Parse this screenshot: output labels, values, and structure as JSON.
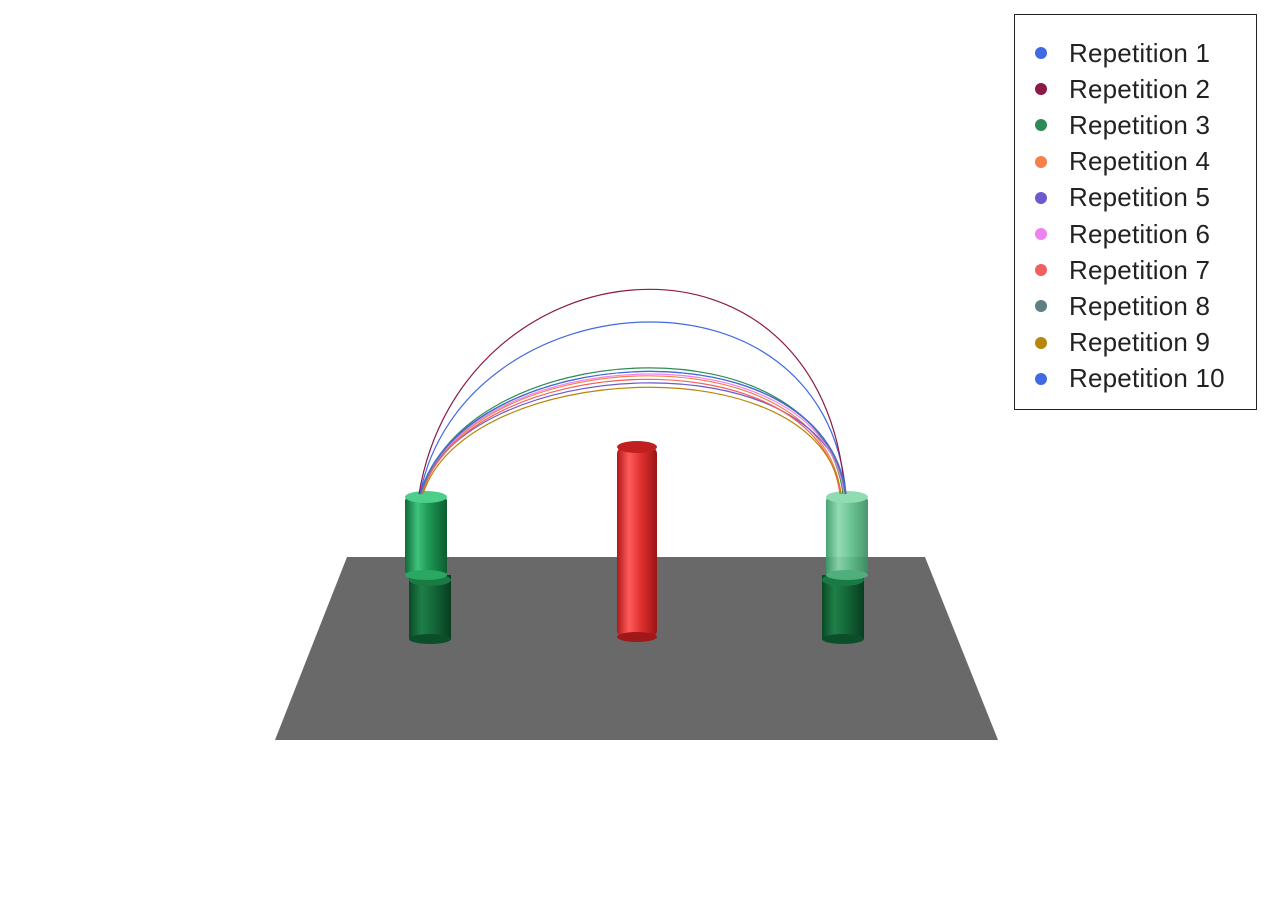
{
  "scene": {
    "platform_color": "#696969",
    "obstacle": {
      "name": "red-cylinder",
      "color": "#e03030"
    },
    "start_post": {
      "color": "#1a8a4a"
    },
    "goal_post": {
      "color": "#1a8a4a"
    }
  },
  "legend": {
    "items": [
      {
        "label": "Repetition 1",
        "color": "#4169e1"
      },
      {
        "label": "Repetition 2",
        "color": "#8b1a4a"
      },
      {
        "label": "Repetition 3",
        "color": "#2e8b57"
      },
      {
        "label": "Repetition 4",
        "color": "#f4804a"
      },
      {
        "label": "Repetition 5",
        "color": "#6a5acd"
      },
      {
        "label": "Repetition 6",
        "color": "#ee82ee"
      },
      {
        "label": "Repetition 7",
        "color": "#f06060"
      },
      {
        "label": "Repetition 8",
        "color": "#5f7f82"
      },
      {
        "label": "Repetition 9",
        "color": "#b8860b"
      },
      {
        "label": "Repetition 10",
        "color": "#4169e1"
      }
    ]
  }
}
